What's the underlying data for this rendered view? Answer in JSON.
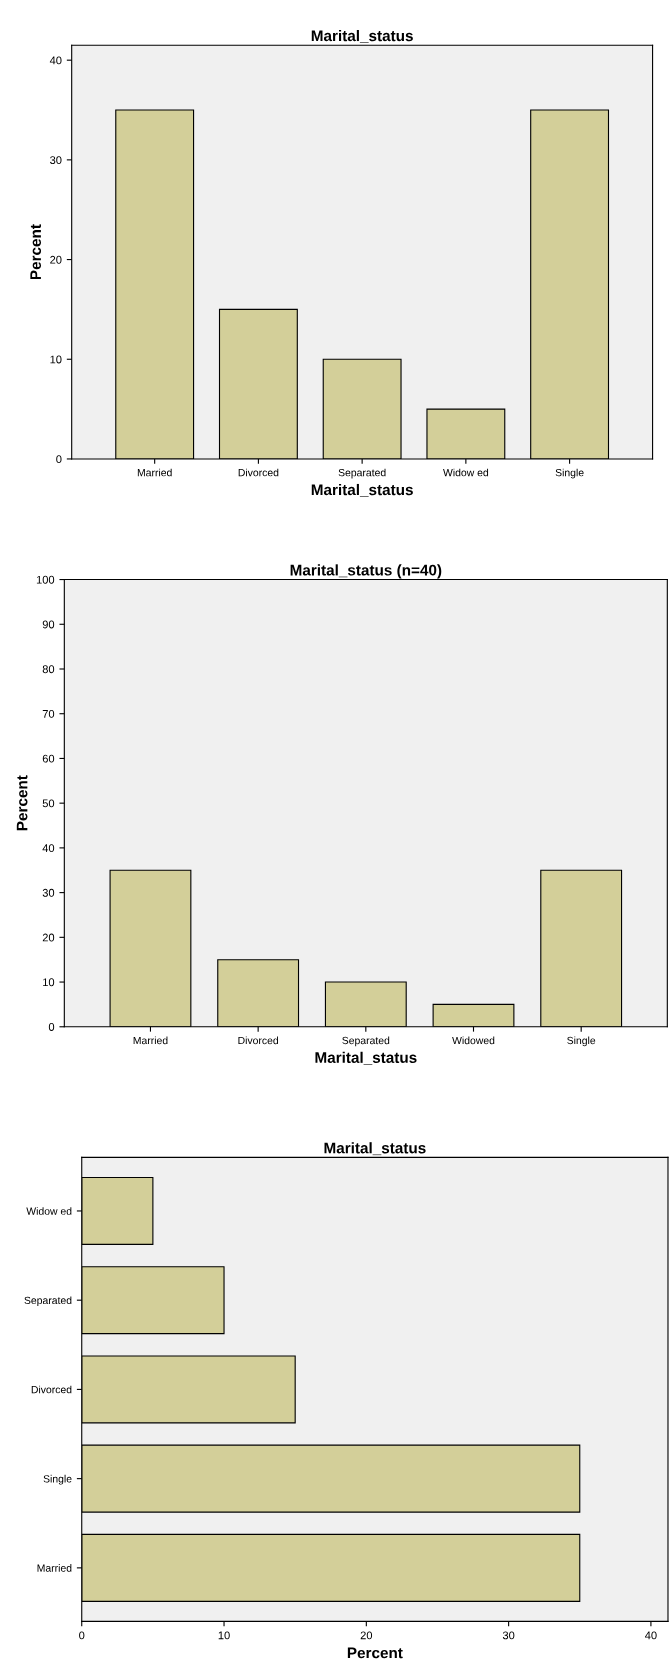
{
  "chart_data": [
    {
      "type": "bar",
      "title": "Marital_status",
      "xlabel": "Marital_status",
      "ylabel": "Percent",
      "categories": [
        "Married",
        "Divorced",
        "Separated",
        "Widow ed",
        "Single"
      ],
      "series": [
        {
          "color": "#d3cf99",
          "values": [
            35,
            15,
            10,
            5,
            35
          ]
        }
      ],
      "ylim": [
        0,
        41.5
      ],
      "yticks": [
        0,
        10,
        20,
        30,
        40
      ],
      "grid": false,
      "legend": false
    },
    {
      "type": "bar",
      "title": "Marital_status (n=40)",
      "xlabel": "Marital_status",
      "ylabel": "Percent",
      "categories": [
        "Married",
        "Divorced",
        "Separated",
        "Widowed",
        "Single"
      ],
      "series": [
        {
          "color": "#d3cf99",
          "values": [
            35,
            15,
            10,
            5,
            35
          ]
        }
      ],
      "ylim": [
        0,
        100
      ],
      "yticks": [
        0,
        10,
        20,
        30,
        40,
        50,
        60,
        70,
        80,
        90,
        100
      ],
      "grid": false,
      "legend": false
    },
    {
      "type": "bar",
      "orientation": "horizontal",
      "title": "Marital_status",
      "xlabel": "Percent",
      "categories": [
        "Widow ed",
        "Separated",
        "Divorced",
        "Single",
        "Married"
      ],
      "series": [
        {
          "color": "#d3cf99",
          "values": [
            5,
            10,
            15,
            35,
            35
          ]
        }
      ],
      "xlim": [
        0,
        41.2
      ],
      "xticks": [
        0,
        10,
        20,
        30,
        40
      ],
      "grid": false,
      "legend": false
    }
  ]
}
